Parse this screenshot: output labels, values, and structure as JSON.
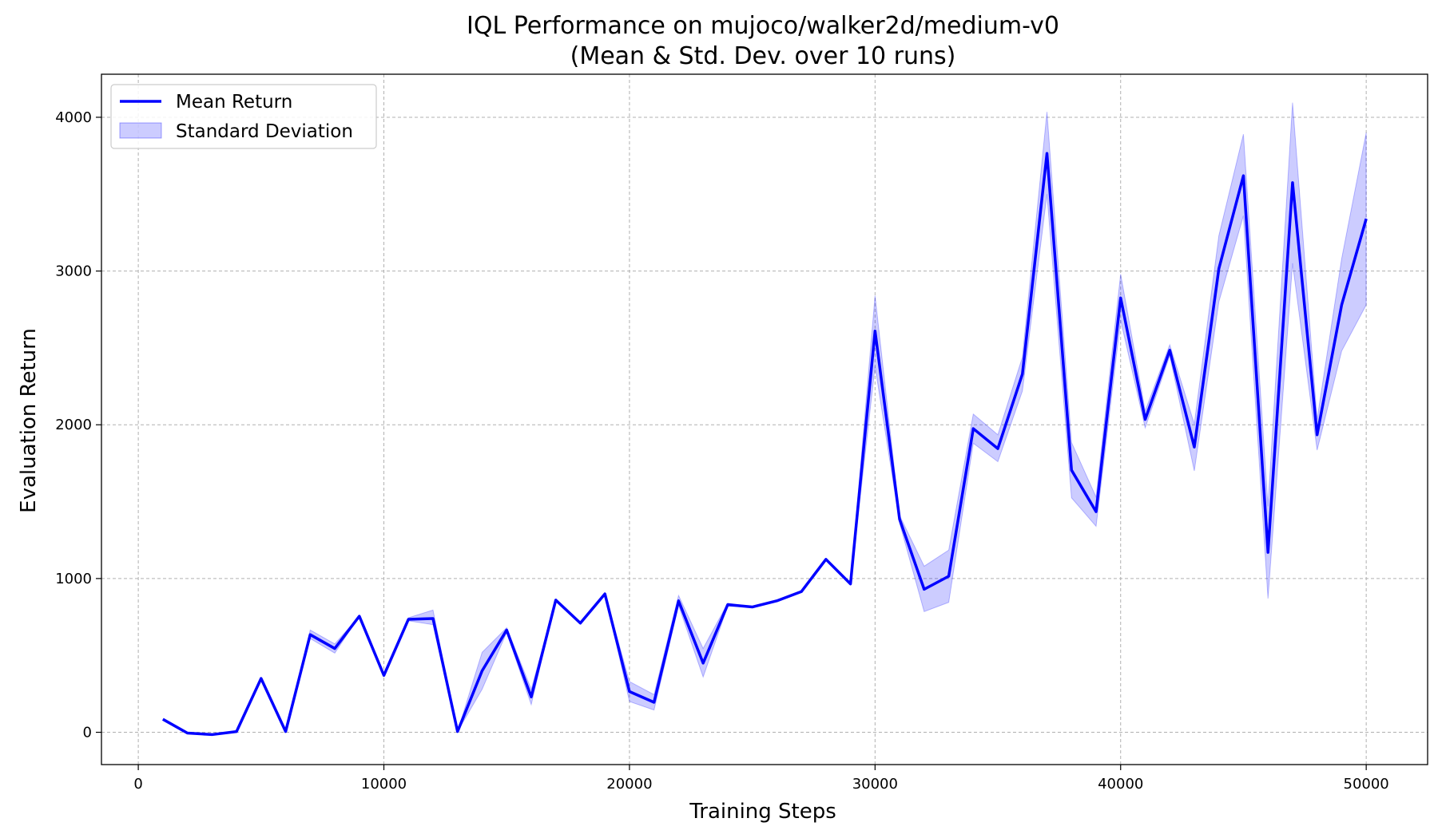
{
  "chart_data": {
    "type": "line",
    "title_line1": "IQL Performance on mujoco/walker2d/medium-v0",
    "title_line2": "(Mean & Std. Dev. over 10 runs)",
    "xlabel": "Training Steps",
    "ylabel": "Evaluation Return",
    "xlim": [
      -1500,
      52500
    ],
    "ylim": [
      -210,
      4280
    ],
    "grid": true,
    "legend_position": "upper-left",
    "x_ticks": [
      0,
      10000,
      20000,
      30000,
      40000,
      50000
    ],
    "y_ticks": [
      0,
      1000,
      2000,
      3000,
      4000
    ],
    "line_color": "#0000ff",
    "band_color": "#0000ff",
    "x": [
      1000,
      2000,
      3000,
      4000,
      5000,
      6000,
      7000,
      8000,
      9000,
      10000,
      11000,
      12000,
      13000,
      14000,
      15000,
      16000,
      17000,
      18000,
      19000,
      20000,
      21000,
      22000,
      23000,
      24000,
      25000,
      26000,
      27000,
      28000,
      29000,
      30000,
      31000,
      32000,
      33000,
      34000,
      35000,
      36000,
      37000,
      38000,
      39000,
      40000,
      41000,
      42000,
      43000,
      44000,
      45000,
      46000,
      47000,
      48000,
      49000,
      50000
    ],
    "series": [
      {
        "name": "Mean Return",
        "values": [
          85,
          -5,
          -15,
          5,
          350,
          5,
          635,
          545,
          755,
          370,
          735,
          740,
          5,
          400,
          665,
          230,
          860,
          710,
          900,
          265,
          195,
          855,
          450,
          830,
          815,
          855,
          915,
          1125,
          965,
          2610,
          1385,
          930,
          1015,
          1975,
          1845,
          2330,
          3765,
          1705,
          1435,
          2825,
          2035,
          2485,
          1855,
          3015,
          3620,
          1170,
          3575,
          1935,
          2780,
          3340
        ]
      },
      {
        "name": "Standard Deviation",
        "lower": [
          85,
          -5,
          -15,
          5,
          350,
          5,
          610,
          515,
          755,
          370,
          725,
          700,
          5,
          280,
          650,
          180,
          860,
          710,
          900,
          200,
          145,
          825,
          360,
          820,
          815,
          855,
          915,
          1125,
          965,
          2380,
          1360,
          785,
          845,
          1880,
          1760,
          2220,
          3500,
          1525,
          1340,
          2680,
          1980,
          2450,
          1700,
          2800,
          3360,
          870,
          3050,
          1835,
          2480,
          2780
        ],
        "upper": [
          85,
          -5,
          -15,
          5,
          350,
          5,
          665,
          575,
          755,
          370,
          745,
          795,
          5,
          520,
          680,
          280,
          860,
          710,
          900,
          330,
          245,
          890,
          545,
          840,
          815,
          855,
          915,
          1125,
          965,
          2840,
          1410,
          1080,
          1185,
          2070,
          1935,
          2440,
          4035,
          1885,
          1530,
          2980,
          2090,
          2520,
          2005,
          3230,
          3890,
          1470,
          4095,
          2035,
          3080,
          3900
        ]
      }
    ]
  }
}
